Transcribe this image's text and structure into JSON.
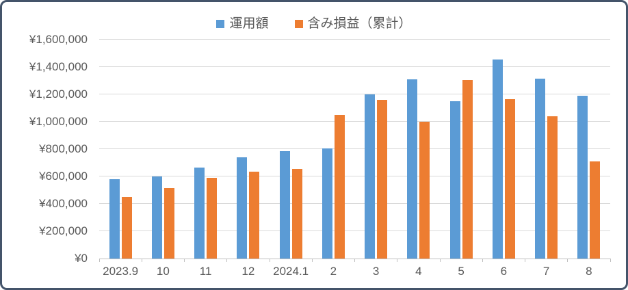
{
  "chart_data": {
    "type": "bar",
    "title": "",
    "categories": [
      "2023.9",
      "10",
      "11",
      "12",
      "2024.1",
      "2",
      "3",
      "4",
      "5",
      "6",
      "7",
      "8"
    ],
    "series": [
      {
        "name": "運用額",
        "color": "#5B9BD5",
        "values": [
          580000,
          600000,
          665000,
          740000,
          785000,
          805000,
          1200000,
          1310000,
          1150000,
          1455000,
          1315000,
          1190000
        ]
      },
      {
        "name": "含み損益（累計）",
        "color": "#ED7D31",
        "values": [
          450000,
          515000,
          590000,
          635000,
          655000,
          1050000,
          1160000,
          1000000,
          1305000,
          1165000,
          1040000,
          710000
        ]
      }
    ],
    "ylim": [
      0,
      1600000
    ],
    "ytick_step": 200000,
    "ytick_labels": [
      "¥0",
      "¥200,000",
      "¥400,000",
      "¥600,000",
      "¥800,000",
      "¥1,000,000",
      "¥1,200,000",
      "¥1,400,000",
      "¥1,600,000"
    ],
    "grid": true,
    "legend_position": "top",
    "colors": {
      "gridline": "#D9D9D9",
      "axis_line": "#BFBFBF",
      "tick_label": "#595959",
      "legend_text": "#595959",
      "frame_border": "#44546A",
      "background": "#FFFFFF"
    }
  }
}
